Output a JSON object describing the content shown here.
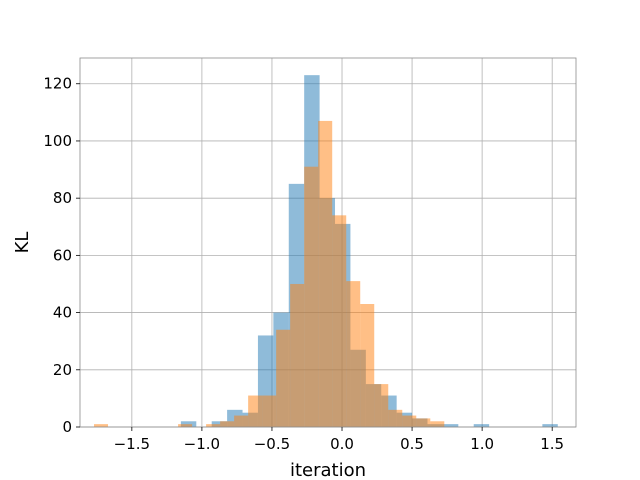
{
  "chart_data": {
    "type": "histogram",
    "title": "",
    "xlabel": "iteration",
    "ylabel": "KL",
    "xlim": [
      -1.87,
      1.67
    ],
    "ylim": [
      0,
      129
    ],
    "grid": true,
    "legend": "none",
    "xticks": [
      -1.5,
      -1.0,
      -0.5,
      0.0,
      0.5,
      1.0,
      1.5
    ],
    "xtick_labels": [
      "−1.5",
      "−1.0",
      "−0.5",
      "0.0",
      "0.5",
      "1.0",
      "1.5"
    ],
    "yticks": [
      0,
      20,
      40,
      60,
      80,
      100,
      120
    ],
    "ytick_labels": [
      "0",
      "20",
      "40",
      "60",
      "80",
      "100",
      "120"
    ],
    "series": [
      {
        "color": "#1f77b4",
        "opacity": 0.5,
        "bins": [
          {
            "x0": -1.15,
            "x1": -1.04,
            "count": 2
          },
          {
            "x0": -0.93,
            "x1": -0.82,
            "count": 2
          },
          {
            "x0": -0.82,
            "x1": -0.71,
            "count": 6
          },
          {
            "x0": -0.71,
            "x1": -0.6,
            "count": 5
          },
          {
            "x0": -0.6,
            "x1": -0.49,
            "count": 32
          },
          {
            "x0": -0.49,
            "x1": -0.38,
            "count": 40
          },
          {
            "x0": -0.38,
            "x1": -0.27,
            "count": 85
          },
          {
            "x0": -0.27,
            "x1": -0.16,
            "count": 123
          },
          {
            "x0": -0.16,
            "x1": -0.05,
            "count": 80
          },
          {
            "x0": -0.05,
            "x1": 0.06,
            "count": 71
          },
          {
            "x0": 0.06,
            "x1": 0.17,
            "count": 27
          },
          {
            "x0": 0.17,
            "x1": 0.28,
            "count": 15
          },
          {
            "x0": 0.28,
            "x1": 0.39,
            "count": 11
          },
          {
            "x0": 0.39,
            "x1": 0.5,
            "count": 5
          },
          {
            "x0": 0.5,
            "x1": 0.61,
            "count": 3
          },
          {
            "x0": 0.61,
            "x1": 0.72,
            "count": 1
          },
          {
            "x0": 0.72,
            "x1": 0.83,
            "count": 1
          },
          {
            "x0": 0.94,
            "x1": 1.05,
            "count": 1
          },
          {
            "x0": 1.43,
            "x1": 1.54,
            "count": 1
          }
        ]
      },
      {
        "color": "#ff7f0e",
        "opacity": 0.5,
        "bins": [
          {
            "x0": -1.77,
            "x1": -1.67,
            "count": 1
          },
          {
            "x0": -1.17,
            "x1": -1.07,
            "count": 1
          },
          {
            "x0": -0.97,
            "x1": -0.87,
            "count": 1
          },
          {
            "x0": -0.87,
            "x1": -0.77,
            "count": 2
          },
          {
            "x0": -0.77,
            "x1": -0.67,
            "count": 4
          },
          {
            "x0": -0.67,
            "x1": -0.57,
            "count": 11
          },
          {
            "x0": -0.57,
            "x1": -0.47,
            "count": 11
          },
          {
            "x0": -0.47,
            "x1": -0.37,
            "count": 34
          },
          {
            "x0": -0.37,
            "x1": -0.27,
            "count": 50
          },
          {
            "x0": -0.27,
            "x1": -0.17,
            "count": 91
          },
          {
            "x0": -0.17,
            "x1": -0.07,
            "count": 107
          },
          {
            "x0": -0.07,
            "x1": 0.03,
            "count": 74
          },
          {
            "x0": 0.03,
            "x1": 0.13,
            "count": 51
          },
          {
            "x0": 0.13,
            "x1": 0.23,
            "count": 43
          },
          {
            "x0": 0.23,
            "x1": 0.33,
            "count": 15
          },
          {
            "x0": 0.33,
            "x1": 0.43,
            "count": 6
          },
          {
            "x0": 0.43,
            "x1": 0.53,
            "count": 4
          },
          {
            "x0": 0.53,
            "x1": 0.63,
            "count": 3
          },
          {
            "x0": 0.63,
            "x1": 0.73,
            "count": 2
          }
        ]
      }
    ]
  }
}
